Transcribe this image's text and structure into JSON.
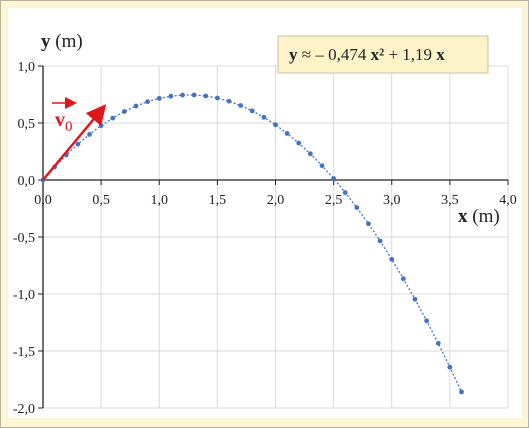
{
  "chart_data": {
    "type": "scatter",
    "y_label_parts": [
      "y",
      " (m)"
    ],
    "x_label_parts": [
      "x",
      " (m)"
    ],
    "equation_parts": [
      "y",
      " ≈ – 0,474 ",
      "x²",
      " + 1,19 ",
      "x"
    ],
    "vector_label": {
      "main": "v",
      "sub": "0"
    },
    "xlim": [
      0,
      4
    ],
    "ylim": [
      -2,
      1
    ],
    "xticks": [
      {
        "value": 0,
        "label": "0,0"
      },
      {
        "value": 0.5,
        "label": "0,5"
      },
      {
        "value": 1,
        "label": "1,0"
      },
      {
        "value": 1.5,
        "label": "1,5"
      },
      {
        "value": 2,
        "label": "2,0"
      },
      {
        "value": 2.5,
        "label": "2,5"
      },
      {
        "value": 3,
        "label": "3,0"
      },
      {
        "value": 3.5,
        "label": "3,5"
      },
      {
        "value": 4,
        "label": "4,0"
      }
    ],
    "yticks": [
      {
        "value": -2,
        "label": "-2,0"
      },
      {
        "value": -1.5,
        "label": "-1,5"
      },
      {
        "value": -1,
        "label": "-1,0"
      },
      {
        "value": -0.5,
        "label": "-0,5"
      },
      {
        "value": 0,
        "label": "0,0"
      },
      {
        "value": 0.5,
        "label": "0,5"
      },
      {
        "value": 1,
        "label": "1,0"
      }
    ],
    "grid": true,
    "series": [
      {
        "color": "#4472c4",
        "x": [
          0,
          0.1,
          0.2,
          0.3,
          0.4,
          0.5,
          0.6,
          0.7,
          0.8,
          0.9,
          1.0,
          1.1,
          1.2,
          1.3,
          1.4,
          1.5,
          1.6,
          1.7,
          1.8,
          1.9,
          2.0,
          2.1,
          2.2,
          2.3,
          2.4,
          2.5,
          2.6,
          2.7,
          2.8,
          2.9,
          3.0,
          3.1,
          3.2,
          3.3,
          3.4,
          3.5,
          3.6
        ],
        "values": [
          0,
          0.114,
          0.219,
          0.314,
          0.4,
          0.477,
          0.543,
          0.601,
          0.649,
          0.687,
          0.716,
          0.735,
          0.745,
          0.746,
          0.737,
          0.719,
          0.691,
          0.653,
          0.606,
          0.55,
          0.484,
          0.409,
          0.324,
          0.23,
          0.126,
          0.013,
          -0.11,
          -0.242,
          -0.384,
          -0.535,
          -0.696,
          -0.866,
          -1.046,
          -1.235,
          -1.433,
          -1.642,
          -1.859
        ]
      }
    ]
  }
}
